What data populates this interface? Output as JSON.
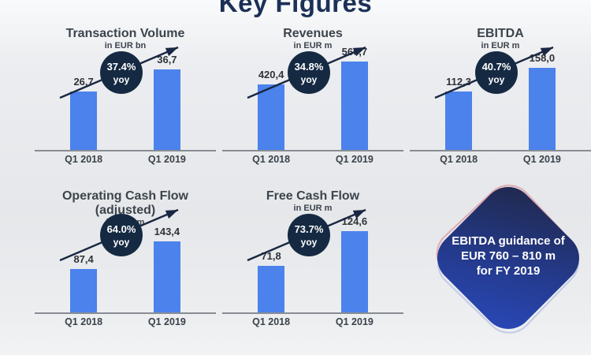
{
  "page": {
    "title": "Key Figures"
  },
  "chart_data": [
    {
      "type": "bar",
      "title": "Transaction Volume",
      "unit": "in EUR bn",
      "categories": [
        "Q1 2018",
        "Q1 2019"
      ],
      "values": [
        26.7,
        36.7
      ],
      "value_labels": [
        "26,7",
        "36,7"
      ],
      "yoy": "37.4%",
      "yoy_label": "yoy",
      "ylim": [
        0,
        46
      ],
      "legend": "none",
      "grid": "off"
    },
    {
      "type": "bar",
      "title": "Revenues",
      "unit": "in EUR m",
      "categories": [
        "Q1 2018",
        "Q1 2019"
      ],
      "values": [
        420.4,
        566.7
      ],
      "value_labels": [
        "420,4",
        "566,7"
      ],
      "yoy": "34.8%",
      "yoy_label": "yoy",
      "ylim": [
        0,
        650
      ],
      "legend": "none",
      "grid": "off"
    },
    {
      "type": "bar",
      "title": "EBITDA",
      "unit": "in EUR m",
      "categories": [
        "Q1 2018",
        "Q1 2019"
      ],
      "values": [
        112.3,
        158.0
      ],
      "value_labels": [
        "112,3",
        "158,0"
      ],
      "yoy": "40.7%",
      "yoy_label": "yoy",
      "ylim": [
        0,
        195
      ],
      "legend": "none",
      "grid": "off"
    },
    {
      "type": "bar",
      "title": "Operating Cash Flow (adjusted)",
      "unit": "in EUR m",
      "categories": [
        "Q1 2018",
        "Q1 2019"
      ],
      "values": [
        87.4,
        143.4
      ],
      "value_labels": [
        "87,4",
        "143,4"
      ],
      "yoy": "64.0%",
      "yoy_label": "yoy",
      "ylim": [
        0,
        205
      ],
      "legend": "none",
      "grid": "off"
    },
    {
      "type": "bar",
      "title": "Free Cash Flow",
      "unit": "in EUR m",
      "categories": [
        "Q1 2018",
        "Q1 2019"
      ],
      "values": [
        71.8,
        124.6
      ],
      "value_labels": [
        "71,8",
        "124,6"
      ],
      "yoy": "73.7%",
      "yoy_label": "yoy",
      "ylim": [
        0,
        155
      ],
      "legend": "none",
      "grid": "off"
    }
  ],
  "guidance_badge": {
    "line1": "EBITDA guidance of",
    "line2": "EUR 760 – 810 m",
    "line3": "for FY 2019"
  },
  "colors": {
    "bar": "#4b82ec",
    "yoy_circle": "#152a42",
    "diamond_accent_pink": "#e0a9b2",
    "diamond_blue_top": "#20294f",
    "diamond_blue_bottom": "#2a49bb",
    "title_navy": "#1c3057"
  }
}
